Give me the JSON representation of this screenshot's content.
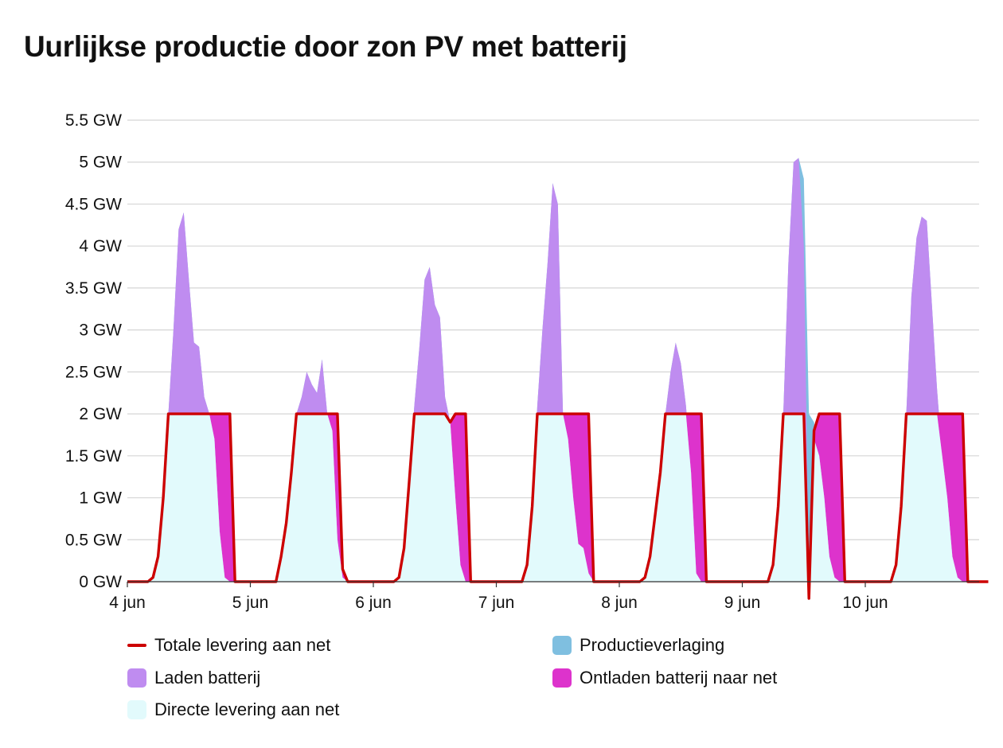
{
  "title": "Uurlijkse productie door zon PV met batterij",
  "colors": {
    "total": "#cc0000",
    "charge": "#bf8cf0",
    "direct": "#e2fafc",
    "curtail": "#7fbfe0",
    "discharge": "#dd33cc",
    "grid": "#d5d5d5"
  },
  "legend": [
    {
      "key": "total",
      "label": "Totale levering aan net",
      "kind": "line"
    },
    {
      "key": "charge",
      "label": "Laden batterij",
      "kind": "box"
    },
    {
      "key": "direct",
      "label": "Directe levering aan net",
      "kind": "box"
    },
    {
      "key": "curtail",
      "label": "Productieverlaging",
      "kind": "box"
    },
    {
      "key": "discharge",
      "label": "Ontladen batterij naar net",
      "kind": "box"
    }
  ],
  "chart_data": {
    "type": "area",
    "title": "Uurlijkse productie door zon PV met batterij",
    "unit": "GW",
    "ylim": [
      0,
      5.5
    ],
    "yticks": [
      "0 GW",
      "0.5 GW",
      "1 GW",
      "1.5 GW",
      "2 GW",
      "2.5 GW",
      "3 GW",
      "3.5 GW",
      "4 GW",
      "4.5 GW",
      "5 GW",
      "5.5 GW"
    ],
    "xticks": [
      "4 jun",
      "5 jun",
      "6 jun",
      "7 jun",
      "8 jun",
      "9 jun",
      "10 jun"
    ],
    "x_unit": "uur",
    "grid": true,
    "legend_position": "bottom",
    "grid_limit_gw": 2.0,
    "hours": [
      0,
      1,
      2,
      3,
      4,
      5,
      6,
      7,
      8,
      9,
      10,
      11,
      12,
      13,
      14,
      15,
      16,
      17,
      18,
      19,
      20,
      21,
      22,
      23
    ],
    "days": [
      {
        "date": "4 jun",
        "production": [
          0,
          0,
          0,
          0,
          0,
          0.05,
          0.3,
          1.0,
          2.0,
          3.0,
          4.2,
          4.4,
          3.6,
          2.85,
          2.8,
          2.2,
          2.0,
          1.7,
          0.6,
          0.05,
          0,
          0,
          0,
          0
        ],
        "curtailment": [
          0,
          0,
          0,
          0,
          0,
          0,
          0,
          0,
          0,
          0,
          0,
          0,
          0,
          0,
          0,
          0,
          0,
          0,
          0,
          0,
          0,
          0,
          0,
          0
        ],
        "discharge": [
          0,
          0,
          0,
          0,
          0,
          0,
          0,
          0,
          0,
          0,
          0,
          0,
          0,
          0,
          0,
          0,
          0,
          0.3,
          1.4,
          1.95,
          2.0,
          0,
          0,
          0
        ]
      },
      {
        "date": "5 jun",
        "production": [
          0,
          0,
          0,
          0,
          0,
          0,
          0.3,
          0.7,
          1.3,
          2.0,
          2.2,
          2.5,
          2.35,
          2.25,
          2.65,
          2.0,
          1.8,
          0.5,
          0.05,
          0,
          0,
          0,
          0,
          0
        ],
        "curtailment": [
          0,
          0,
          0,
          0,
          0,
          0,
          0,
          0,
          0,
          0,
          0,
          0,
          0,
          0,
          0,
          0,
          0,
          0,
          0,
          0,
          0,
          0,
          0,
          0
        ],
        "discharge": [
          0,
          0,
          0,
          0,
          0,
          0,
          0,
          0,
          0,
          0,
          0,
          0,
          0,
          0,
          0,
          0,
          0.2,
          1.5,
          0.1,
          0,
          0,
          0,
          0,
          0
        ],
        "_note": "direct-only"
      },
      {
        "date": "6 jun",
        "production": [
          0,
          0,
          0,
          0,
          0,
          0.05,
          0.4,
          1.2,
          2.1,
          2.8,
          3.6,
          3.75,
          3.3,
          3.15,
          2.2,
          1.9,
          1.0,
          0.2,
          0,
          0,
          0,
          0,
          0,
          0
        ],
        "curtailment": [
          0,
          0,
          0,
          0,
          0,
          0,
          0,
          0,
          0,
          0,
          0,
          0,
          0,
          0,
          0,
          0,
          0,
          0,
          0,
          0,
          0,
          0,
          0,
          0
        ],
        "discharge": [
          0,
          0,
          0,
          0,
          0,
          0,
          0,
          0,
          0,
          0,
          0,
          0,
          0,
          0,
          0,
          0,
          1.0,
          1.8,
          2.0,
          0,
          0,
          0,
          0,
          0
        ]
      },
      {
        "date": "7 jun",
        "production": [
          0,
          0,
          0,
          0,
          0,
          0,
          0.2,
          0.9,
          2.1,
          3.0,
          3.8,
          4.75,
          4.5,
          2.0,
          1.7,
          1.0,
          0.45,
          0.4,
          0.1,
          0,
          0,
          0,
          0,
          0
        ],
        "curtailment": [
          0,
          0,
          0,
          0,
          0,
          0,
          0,
          0,
          0,
          0,
          0,
          0,
          0,
          0,
          0,
          0,
          0,
          0,
          0,
          0,
          0,
          0,
          0,
          0
        ],
        "discharge": [
          0,
          0,
          0,
          0,
          0,
          0,
          0,
          0,
          0,
          0,
          0,
          0,
          0,
          0,
          0.3,
          1.0,
          1.55,
          1.6,
          1.9,
          0,
          0,
          0,
          0,
          0
        ]
      },
      {
        "date": "8 jun",
        "production": [
          0,
          0,
          0,
          0,
          0,
          0.05,
          0.3,
          0.8,
          1.3,
          2.0,
          2.5,
          2.85,
          2.6,
          2.1,
          1.3,
          0.1,
          0,
          0,
          0,
          0,
          0,
          0,
          0,
          0
        ],
        "curtailment": [
          0,
          0,
          0,
          0,
          0,
          0,
          0,
          0,
          0,
          0,
          0,
          0,
          0,
          0,
          0,
          0,
          0,
          0,
          0,
          0,
          0,
          0,
          0,
          0
        ],
        "discharge": [
          0,
          0,
          0,
          0,
          0,
          0,
          0,
          0,
          0,
          0,
          0,
          0,
          0,
          0,
          0.7,
          1.9,
          2.0,
          0,
          0,
          0,
          0,
          0,
          0,
          0
        ]
      },
      {
        "date": "9 jun",
        "production": [
          0,
          0,
          0,
          0,
          0,
          0,
          0.2,
          0.9,
          2.0,
          3.8,
          5.0,
          5.05,
          4.8,
          2.0,
          1.9,
          1.5,
          1.0,
          0.3,
          0.05,
          0,
          0,
          0,
          0,
          0
        ],
        "curtailment": [
          0,
          0,
          0,
          0,
          0,
          0,
          0,
          0,
          0,
          0,
          0,
          0,
          0.8,
          2.2,
          0.2,
          0,
          0,
          0,
          0,
          0,
          0,
          0,
          0,
          0
        ],
        "discharge": [
          0,
          0,
          0,
          0,
          0,
          0,
          0,
          0,
          0,
          0,
          0,
          0,
          0,
          0,
          0.1,
          0.5,
          1.0,
          1.7,
          1.95,
          2.0,
          0,
          0,
          0,
          0
        ]
      },
      {
        "date": "10 jun",
        "production": [
          0,
          0,
          0,
          0,
          0,
          0,
          0.2,
          0.9,
          2.0,
          3.4,
          4.1,
          4.35,
          4.3,
          3.3,
          2.3,
          1.5,
          1.0,
          0.3,
          0.05,
          0,
          0,
          0,
          0,
          0
        ],
        "curtailment": [
          0,
          0,
          0,
          0,
          0,
          0,
          0,
          0,
          0,
          0,
          0,
          0,
          0,
          0,
          0,
          0,
          0,
          0,
          0,
          0,
          0,
          0,
          0,
          0
        ],
        "discharge": [
          0,
          0,
          0,
          0,
          0,
          0,
          0,
          0,
          0,
          0,
          0,
          0,
          0,
          0,
          0,
          0.5,
          1.0,
          1.7,
          1.95,
          2.0,
          0,
          0,
          0,
          0
        ]
      }
    ]
  }
}
